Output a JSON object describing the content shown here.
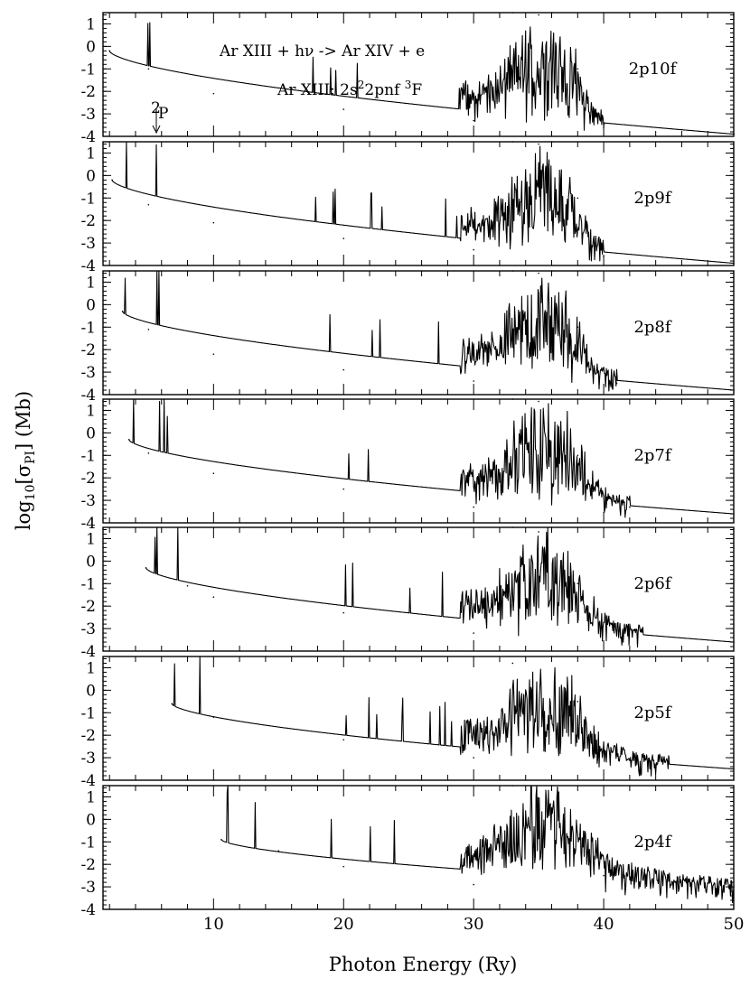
{
  "chart_data": {
    "type": "line",
    "title": "",
    "xlabel": "Photon Energy (Ry)",
    "ylabel_parts": {
      "pre": "log",
      "sub1": "10",
      "mid": "[σ",
      "sub2": "PI",
      "post": "] (Mb)"
    },
    "xlim": [
      1.5,
      50
    ],
    "ylim": [
      -4,
      1.5
    ],
    "x_ticks": [
      10,
      20,
      30,
      40,
      50
    ],
    "y_ticks": [
      1,
      0,
      -1,
      -2,
      -3,
      -4
    ],
    "grid": false,
    "annotations": {
      "reaction": "Ar XIII + hν -> Ar XIV + e",
      "state_pre": "Ar XIII: 2s",
      "state_sup1": "2",
      "state_mid": "2pnf ",
      "state_sup2": "3",
      "state_post": "F",
      "threshold_sup": "2",
      "threshold_label": "P"
    },
    "series": [
      {
        "name": "2p10f",
        "threshold": 2.0,
        "bg_start": -0.2,
        "bg_end": -3.9,
        "res_max": 40,
        "x": [
          2.0,
          5.0,
          10,
          20,
          30,
          33,
          35,
          36,
          38,
          40,
          50
        ],
        "values": [
          -0.2,
          -1.0,
          -2.1,
          -2.8,
          -3.3,
          1.5,
          1.4,
          1.5,
          -1.0,
          -3.6,
          -3.9
        ]
      },
      {
        "name": "2p9f",
        "threshold": 2.2,
        "bg_start": -0.2,
        "bg_end": -3.9,
        "res_max": 40,
        "x": [
          2.2,
          5.0,
          10,
          20,
          30,
          33,
          35,
          36,
          38,
          40,
          50
        ],
        "values": [
          -0.2,
          -1.3,
          -2.1,
          -2.8,
          -3.3,
          1.5,
          1.4,
          1.5,
          -1.0,
          -3.6,
          -3.9
        ]
      },
      {
        "name": "2p8f",
        "threshold": 3.0,
        "bg_start": -0.3,
        "bg_end": -3.8,
        "res_max": 41,
        "x": [
          3.0,
          5.0,
          10,
          20,
          30,
          33,
          35,
          36,
          38,
          41,
          50
        ],
        "values": [
          -0.3,
          -1.1,
          -2.2,
          -2.9,
          -3.4,
          1.5,
          1.4,
          1.5,
          -1.0,
          -3.5,
          -3.8
        ]
      },
      {
        "name": "2p7f",
        "threshold": 3.5,
        "bg_start": -0.3,
        "bg_end": -3.6,
        "res_max": 42,
        "x": [
          3.5,
          5.0,
          10,
          20,
          30,
          33,
          35,
          36,
          38,
          42,
          50
        ],
        "values": [
          -0.3,
          -0.9,
          -1.8,
          -2.5,
          -3.3,
          1.5,
          1.4,
          1.5,
          -1.0,
          -3.3,
          -3.6
        ]
      },
      {
        "name": "2p6f",
        "threshold": 4.8,
        "bg_start": -0.3,
        "bg_end": -3.6,
        "res_max": 43,
        "x": [
          4.8,
          8.0,
          10,
          20,
          30,
          33,
          35,
          36,
          38,
          43,
          50
        ],
        "values": [
          -0.3,
          -1.1,
          -1.6,
          -2.3,
          -3.2,
          1.5,
          1.3,
          1.5,
          -1.0,
          -3.0,
          -3.6
        ]
      },
      {
        "name": "2p5f",
        "threshold": 6.8,
        "bg_start": -0.6,
        "bg_end": -3.5,
        "res_max": 45,
        "x": [
          6.8,
          10,
          20,
          30,
          33,
          36,
          38,
          45
        ],
        "values": [
          -0.6,
          -1.2,
          -2.2,
          -3.0,
          1.2,
          1.5,
          -0.5,
          -3.0
        ]
      },
      {
        "name": "2p4f",
        "threshold": 10.6,
        "bg_start": -0.9,
        "bg_end": -3.0,
        "res_max": 50,
        "x": [
          10.6,
          15,
          20,
          30,
          33,
          36,
          40,
          50
        ],
        "values": [
          -0.9,
          -1.4,
          -2.1,
          -2.9,
          1.5,
          1.5,
          -2.5,
          -3.0
        ]
      }
    ]
  }
}
